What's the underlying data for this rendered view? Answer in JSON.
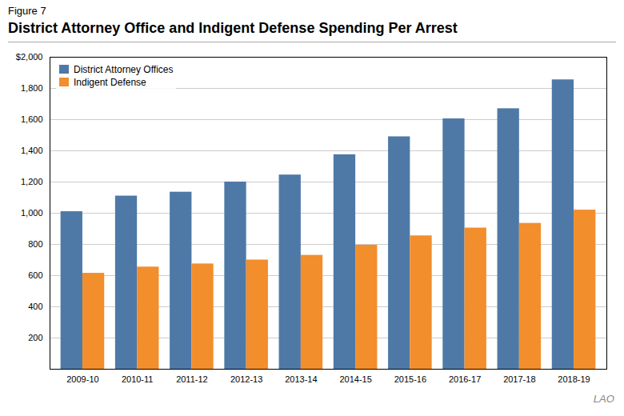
{
  "chart_data": {
    "type": "bar",
    "title": "District Attorney Office and Indigent Defense Spending Per Arrest",
    "annotations": [
      "Figure 7",
      "LAO "
    ],
    "categories": [
      "2009-10",
      "2010-11",
      "2011-12",
      "2012-13",
      "2013-14",
      "2014-15",
      "2015-16",
      "2016-17",
      "2017-18",
      "2018-19"
    ],
    "series": [
      {
        "name": "District Attorney Offices",
        "values": [
          1010,
          1110,
          1135,
          1200,
          1245,
          1375,
          1490,
          1605,
          1670,
          1855
        ]
      },
      {
        "name": "Indigent Defense",
        "values": [
          615,
          655,
          675,
          700,
          730,
          795,
          855,
          905,
          935,
          1020
        ]
      }
    ],
    "ylim": [
      0,
      2000
    ],
    "yticks": [
      200,
      400,
      600,
      800,
      {
        "value": 1000,
        "label": "1,000"
      },
      {
        "value": 1200,
        "label": "1,200"
      },
      {
        "value": 1400,
        "label": "1,400"
      },
      {
        "value": 1600,
        "label": "1,600"
      },
      {
        "value": 1800,
        "label": "1,800"
      },
      {
        "value": 2000,
        "label": "$2,000"
      }
    ],
    "grid": true,
    "legend": "upper left"
  }
}
